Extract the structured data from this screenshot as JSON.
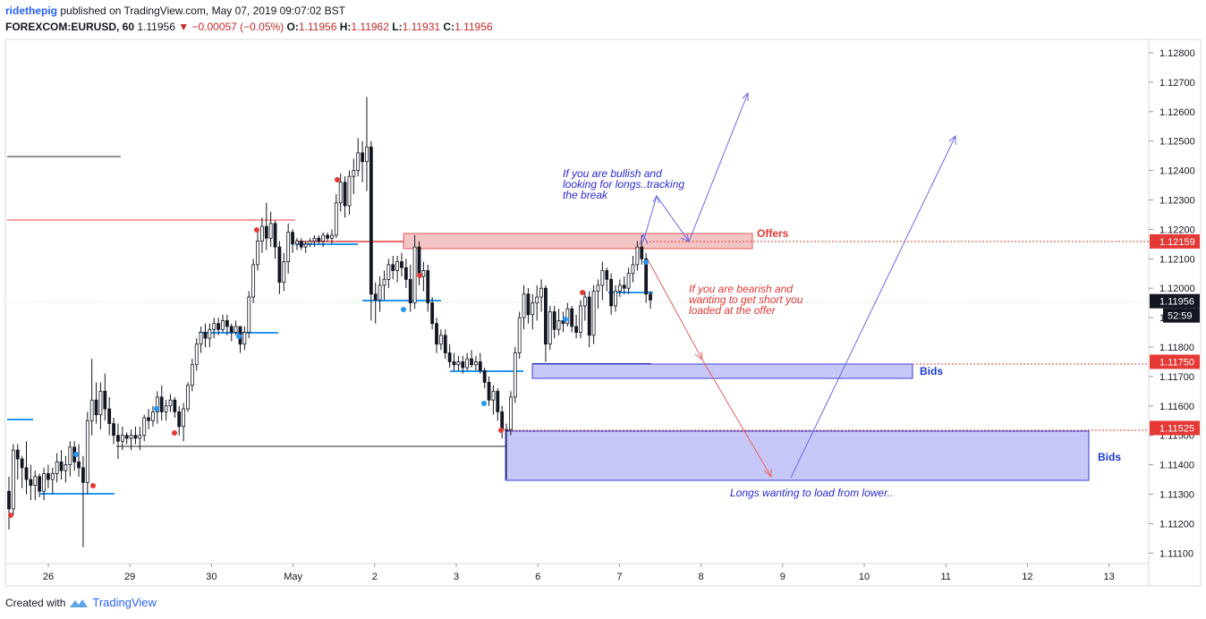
{
  "header": {
    "author": "ridethepig",
    "published": "published on TradingView.com, May 07, 2019 09:07:02 BST",
    "symbol": "FOREXCOM:EURUSD, 60",
    "last": "1.11956",
    "change": "−0.00057 (−0.05%)",
    "o_label": "O:",
    "o_value": "1.11956",
    "h_label": "H:",
    "h_value": "1.11962",
    "l_label": "L:",
    "l_value": "1.11931",
    "c_label": "C:",
    "c_value": "1.11956"
  },
  "footer": {
    "created_with": "Created with",
    "brand": "TradingView"
  },
  "colors": {
    "offers_zone": "#f4c5c5",
    "offers_border": "#e05b5b",
    "bids_zone": "#c8c8f8",
    "bids_border": "#3b3bd6",
    "bull_arrow": "#6a6ae8",
    "bear_arrow": "#e86060",
    "level_marker": "#e53935",
    "last_marker": "#131722",
    "level_blue": "#2196f3"
  },
  "chart_data": {
    "type": "candlestick",
    "y_axis": {
      "min": 1.111,
      "max": 1.128,
      "step": 0.001,
      "tick_labels": [
        "1.12800",
        "1.12700",
        "1.12600",
        "1.12500",
        "1.12400",
        "1.12300",
        "1.12200",
        "1.12100",
        "1.12000",
        "1.11900",
        "1.11800",
        "1.11700",
        "1.11600",
        "1.11500",
        "1.11400",
        "1.11300",
        "1.11200",
        "1.11100"
      ]
    },
    "x_axis": {
      "tick_labels": [
        "26",
        "29",
        "30",
        "May",
        "2",
        "3",
        "6",
        "7",
        "8",
        "9",
        "10",
        "11",
        "12",
        "13"
      ]
    },
    "price_markers": [
      {
        "value": 1.12159,
        "label": "1.12159",
        "type": "offer"
      },
      {
        "value": 1.11956,
        "label": "1.11956",
        "type": "last"
      },
      {
        "value": 1.1175,
        "label": "1.11750",
        "type": "bid"
      },
      {
        "value": 1.11525,
        "label": "1.11525",
        "type": "bid"
      }
    ],
    "countdown": "52:59",
    "zones": [
      {
        "name": "Offers",
        "label": "Offers",
        "top": 1.1219,
        "bottom": 1.1214,
        "kind": "offer"
      },
      {
        "name": "Bids",
        "label": "Bids",
        "top": 1.1175,
        "bottom": 1.117,
        "kind": "bid"
      },
      {
        "name": "Bids",
        "label": "Bids",
        "top": 1.11525,
        "bottom": 1.1135,
        "kind": "bid"
      }
    ],
    "annotations": [
      {
        "text": "If you are bullish and\nlooking for longs..tracking\nthe break",
        "kind": "bull"
      },
      {
        "text": "If you are bearish and\nwanting to get short you\nloaded at the offer",
        "kind": "bear"
      },
      {
        "text": "Longs wanting to load from lower..",
        "kind": "bull"
      }
    ],
    "candles": [
      [
        1.1131,
        1.1136,
        1.1118,
        1.1125
      ],
      [
        1.1125,
        1.1147,
        1.1123,
        1.1145
      ],
      [
        1.1145,
        1.1147,
        1.1135,
        1.1142
      ],
      [
        1.1142,
        1.1143,
        1.1132,
        1.1139
      ],
      [
        1.1139,
        1.1148,
        1.113,
        1.1135
      ],
      [
        1.1135,
        1.114,
        1.1128,
        1.1133
      ],
      [
        1.1133,
        1.1138,
        1.1128,
        1.1136
      ],
      [
        1.1136,
        1.1137,
        1.1129,
        1.1131
      ],
      [
        1.1131,
        1.1139,
        1.1128,
        1.1137
      ],
      [
        1.1137,
        1.114,
        1.1132,
        1.1135
      ],
      [
        1.1135,
        1.1139,
        1.113,
        1.1137
      ],
      [
        1.1137,
        1.1144,
        1.1134,
        1.1141
      ],
      [
        1.1141,
        1.1145,
        1.1135,
        1.1138
      ],
      [
        1.1138,
        1.1143,
        1.1134,
        1.114
      ],
      [
        1.114,
        1.1148,
        1.1136,
        1.1146
      ],
      [
        1.1146,
        1.1148,
        1.1138,
        1.1141
      ],
      [
        1.1141,
        1.1147,
        1.1136,
        1.1139
      ],
      [
        1.1139,
        1.1143,
        1.1112,
        1.1134
      ],
      [
        1.1134,
        1.1158,
        1.113,
        1.1155
      ],
      [
        1.1155,
        1.1176,
        1.115,
        1.1162
      ],
      [
        1.1162,
        1.1168,
        1.1154,
        1.1157
      ],
      [
        1.1157,
        1.1168,
        1.1152,
        1.1165
      ],
      [
        1.1165,
        1.1171,
        1.1155,
        1.1159
      ],
      [
        1.1159,
        1.1163,
        1.115,
        1.1154
      ],
      [
        1.1154,
        1.1156,
        1.1147,
        1.115
      ],
      [
        1.115,
        1.1154,
        1.1142,
        1.1148
      ],
      [
        1.1148,
        1.1153,
        1.1145,
        1.115
      ],
      [
        1.115,
        1.1151,
        1.1147,
        1.1149
      ],
      [
        1.1149,
        1.1152,
        1.1145,
        1.115
      ],
      [
        1.115,
        1.1153,
        1.1147,
        1.1149
      ],
      [
        1.1149,
        1.1153,
        1.1145,
        1.115
      ],
      [
        1.115,
        1.1157,
        1.1148,
        1.1156
      ],
      [
        1.1156,
        1.1159,
        1.1152,
        1.1155
      ],
      [
        1.1155,
        1.116,
        1.1153,
        1.1158
      ],
      [
        1.1158,
        1.1165,
        1.1154,
        1.1163
      ],
      [
        1.1163,
        1.1167,
        1.1155,
        1.1158
      ],
      [
        1.1158,
        1.1162,
        1.1155,
        1.116
      ],
      [
        1.116,
        1.1164,
        1.1158,
        1.1162
      ],
      [
        1.1162,
        1.1163,
        1.1156,
        1.1158
      ],
      [
        1.1158,
        1.116,
        1.115,
        1.1153
      ],
      [
        1.1153,
        1.1161,
        1.1148,
        1.1159
      ],
      [
        1.1159,
        1.1168,
        1.1158,
        1.1167
      ],
      [
        1.1167,
        1.1176,
        1.1165,
        1.1174
      ],
      [
        1.1174,
        1.1183,
        1.1172,
        1.1181
      ],
      [
        1.1181,
        1.1187,
        1.1178,
        1.1185
      ],
      [
        1.1185,
        1.1188,
        1.118,
        1.1183
      ],
      [
        1.1183,
        1.1188,
        1.118,
        1.1186
      ],
      [
        1.1186,
        1.119,
        1.1183,
        1.1188
      ],
      [
        1.1188,
        1.119,
        1.1184,
        1.1186
      ],
      [
        1.1186,
        1.1191,
        1.1185,
        1.1189
      ],
      [
        1.1189,
        1.1191,
        1.1184,
        1.1187
      ],
      [
        1.1187,
        1.1188,
        1.1182,
        1.1185
      ],
      [
        1.1185,
        1.1189,
        1.1184,
        1.1187
      ],
      [
        1.1187,
        1.1187,
        1.1178,
        1.1181
      ],
      [
        1.1181,
        1.1187,
        1.1179,
        1.1185
      ],
      [
        1.1185,
        1.1199,
        1.1183,
        1.1197
      ],
      [
        1.1197,
        1.121,
        1.1195,
        1.1208
      ],
      [
        1.1208,
        1.1219,
        1.1206,
        1.1216
      ],
      [
        1.1216,
        1.1224,
        1.1212,
        1.1221
      ],
      [
        1.1221,
        1.1229,
        1.1213,
        1.1217
      ],
      [
        1.1217,
        1.1226,
        1.1214,
        1.1222
      ],
      [
        1.1222,
        1.1223,
        1.121,
        1.1214
      ],
      [
        1.1214,
        1.1216,
        1.1198,
        1.1202
      ],
      [
        1.1202,
        1.1212,
        1.1199,
        1.1209
      ],
      [
        1.1209,
        1.1222,
        1.1205,
        1.1219
      ],
      [
        1.1219,
        1.122,
        1.1212,
        1.1215
      ],
      [
        1.1215,
        1.1217,
        1.1213,
        1.1216
      ],
      [
        1.1216,
        1.1217,
        1.1213,
        1.1214
      ],
      [
        1.1214,
        1.1216,
        1.1212,
        1.1215
      ],
      [
        1.1215,
        1.1217,
        1.1214,
        1.1216
      ],
      [
        1.1216,
        1.1218,
        1.1214,
        1.1217
      ],
      [
        1.1217,
        1.1218,
        1.1215,
        1.1216
      ],
      [
        1.1216,
        1.1219,
        1.1214,
        1.1218
      ],
      [
        1.1218,
        1.1219,
        1.1216,
        1.1217
      ],
      [
        1.1217,
        1.122,
        1.1215,
        1.1218
      ],
      [
        1.1218,
        1.1232,
        1.1217,
        1.1229
      ],
      [
        1.1229,
        1.1239,
        1.1226,
        1.1236
      ],
      [
        1.1236,
        1.1238,
        1.1224,
        1.1228
      ],
      [
        1.1228,
        1.124,
        1.1225,
        1.1238
      ],
      [
        1.1238,
        1.1244,
        1.1232,
        1.124
      ],
      [
        1.124,
        1.1251,
        1.1238,
        1.1246
      ],
      [
        1.1246,
        1.125,
        1.1236,
        1.1243
      ],
      [
        1.1243,
        1.1265,
        1.1233,
        1.1248
      ],
      [
        1.1248,
        1.125,
        1.1189,
        1.1198
      ],
      [
        1.1198,
        1.1202,
        1.1188,
        1.1196
      ],
      [
        1.1196,
        1.1204,
        1.1192,
        1.1201
      ],
      [
        1.1201,
        1.1206,
        1.1196,
        1.1203
      ],
      [
        1.1203,
        1.121,
        1.12,
        1.1208
      ],
      [
        1.1208,
        1.1211,
        1.1203,
        1.1206
      ],
      [
        1.1206,
        1.1211,
        1.1202,
        1.1209
      ],
      [
        1.1209,
        1.1212,
        1.1204,
        1.1207
      ],
      [
        1.1207,
        1.121,
        1.12,
        1.1203
      ],
      [
        1.1203,
        1.1208,
        1.1192,
        1.1195
      ],
      [
        1.1195,
        1.1218,
        1.1193,
        1.1214
      ],
      [
        1.1214,
        1.1216,
        1.1201,
        1.1204
      ],
      [
        1.1204,
        1.1209,
        1.1199,
        1.1206
      ],
      [
        1.1206,
        1.1208,
        1.1192,
        1.1195
      ],
      [
        1.1195,
        1.1197,
        1.1186,
        1.1188
      ],
      [
        1.1188,
        1.119,
        1.1178,
        1.1181
      ],
      [
        1.1181,
        1.1186,
        1.1179,
        1.1184
      ],
      [
        1.1184,
        1.1186,
        1.1176,
        1.1178
      ],
      [
        1.1178,
        1.1181,
        1.1173,
        1.1175
      ],
      [
        1.1175,
        1.1178,
        1.1172,
        1.1174
      ],
      [
        1.1174,
        1.1177,
        1.1172,
        1.1175
      ],
      [
        1.1175,
        1.1177,
        1.1171,
        1.1173
      ],
      [
        1.1173,
        1.1178,
        1.1172,
        1.1176
      ],
      [
        1.1176,
        1.1179,
        1.1173,
        1.1174
      ],
      [
        1.1174,
        1.1177,
        1.1172,
        1.1175
      ],
      [
        1.1175,
        1.1178,
        1.1171,
        1.1172
      ],
      [
        1.1172,
        1.1173,
        1.1166,
        1.1168
      ],
      [
        1.1168,
        1.117,
        1.116,
        1.1162
      ],
      [
        1.1162,
        1.1167,
        1.1157,
        1.1165
      ],
      [
        1.1165,
        1.1166,
        1.1155,
        1.1158
      ],
      [
        1.1158,
        1.116,
        1.1149,
        1.1152
      ],
      [
        1.1152,
        1.1154,
        1.1135,
        1.1152
      ],
      [
        1.1152,
        1.1165,
        1.115,
        1.1163
      ],
      [
        1.1163,
        1.118,
        1.1161,
        1.1178
      ],
      [
        1.1178,
        1.1192,
        1.1176,
        1.119
      ],
      [
        1.119,
        1.1201,
        1.1186,
        1.1198
      ],
      [
        1.1198,
        1.12,
        1.1188,
        1.1191
      ],
      [
        1.1191,
        1.1198,
        1.1186,
        1.1195
      ],
      [
        1.1195,
        1.1201,
        1.1189,
        1.1197
      ],
      [
        1.1197,
        1.1203,
        1.1192,
        1.12
      ],
      [
        1.12,
        1.1201,
        1.1175,
        1.1181
      ],
      [
        1.1181,
        1.1194,
        1.1179,
        1.1192
      ],
      [
        1.1192,
        1.1194,
        1.1183,
        1.1186
      ],
      [
        1.1186,
        1.1193,
        1.1184,
        1.1189
      ],
      [
        1.1189,
        1.1192,
        1.1185,
        1.1188
      ],
      [
        1.1188,
        1.1195,
        1.1187,
        1.1193
      ],
      [
        1.1193,
        1.1194,
        1.1185,
        1.1187
      ],
      [
        1.1187,
        1.1191,
        1.1183,
        1.1185
      ],
      [
        1.1185,
        1.1196,
        1.1183,
        1.1194
      ],
      [
        1.1194,
        1.1199,
        1.1189,
        1.1197
      ],
      [
        1.1197,
        1.1199,
        1.118,
        1.1184
      ],
      [
        1.1184,
        1.1201,
        1.1181,
        1.1199
      ],
      [
        1.1199,
        1.1203,
        1.1193,
        1.1201
      ],
      [
        1.1201,
        1.1209,
        1.1196,
        1.1206
      ],
      [
        1.1206,
        1.1207,
        1.1199,
        1.1203
      ],
      [
        1.1203,
        1.1205,
        1.1191,
        1.1194
      ],
      [
        1.1194,
        1.1201,
        1.1192,
        1.1199
      ],
      [
        1.1199,
        1.1203,
        1.1197,
        1.1201
      ],
      [
        1.1201,
        1.1204,
        1.1198,
        1.12
      ],
      [
        1.12,
        1.1207,
        1.1198,
        1.1205
      ],
      [
        1.1205,
        1.1211,
        1.1202,
        1.1208
      ],
      [
        1.1208,
        1.1216,
        1.1206,
        1.1214
      ],
      [
        1.1214,
        1.1218,
        1.1208,
        1.121
      ],
      [
        1.121,
        1.1212,
        1.1195,
        1.1198
      ],
      [
        1.1198,
        1.1199,
        1.1193,
        1.1196
      ]
    ]
  }
}
